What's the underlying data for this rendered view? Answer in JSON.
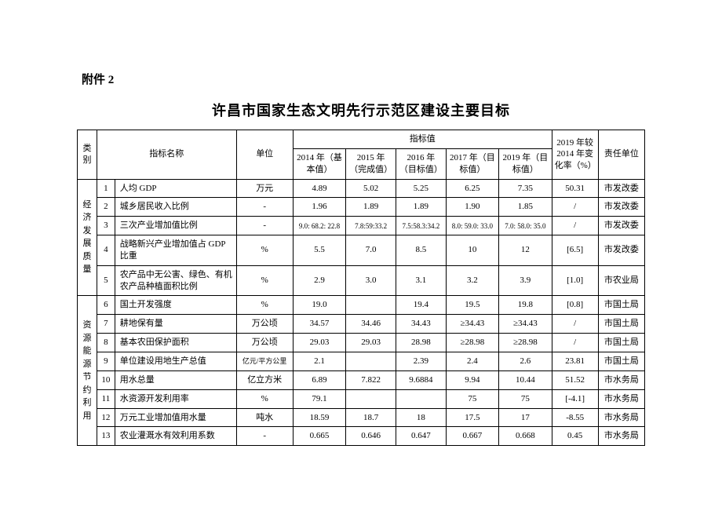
{
  "attachment_label": "附件 2",
  "title": "许昌市国家生态文明先行示范区建设主要目标",
  "headers": {
    "category": "类别",
    "indicator_name": "指标名称",
    "unit": "单位",
    "indicator_values": "指标值",
    "y2014": "2014 年（基本值）",
    "y2015": "2015 年（完成值）",
    "y2016": "2016 年（目标值）",
    "y2017": "2017 年（目标值）",
    "y2019": "2019 年（目标值）",
    "change": "2019 年较 2014 年变化率（%）",
    "responsible": "责任单位"
  },
  "categories": [
    {
      "name": "经济发展质量",
      "rows": [
        {
          "num": "1",
          "name": "人均 GDP",
          "unit": "万元",
          "v14": "4.89",
          "v15": "5.02",
          "v16": "5.25",
          "v17": "6.25",
          "v19": "7.35",
          "chg": "50.31",
          "resp": "市发改委"
        },
        {
          "num": "2",
          "name": "城乡居民收入比例",
          "unit": "-",
          "v14": "1.96",
          "v15": "1.89",
          "v16": "1.89",
          "v17": "1.90",
          "v19": "1.85",
          "chg": "/",
          "resp": "市发改委"
        },
        {
          "num": "3",
          "name": "三次产业增加值比例",
          "unit": "-",
          "v14": "9.0: 68.2: 22.8",
          "v15": "7.8:59:33.2",
          "v16": "7.5:58.3:34.2",
          "v17": "8.0: 59.0: 33.0",
          "v19": "7.0: 58.0: 35.0",
          "chg": "/",
          "resp": "市发改委",
          "tight": true
        },
        {
          "num": "4",
          "name": "战略新兴产业增加值占 GDP 比重",
          "unit": "%",
          "v14": "5.5",
          "v15": "7.0",
          "v16": "8.5",
          "v17": "10",
          "v19": "12",
          "chg": "[6.5]",
          "resp": "市发改委"
        },
        {
          "num": "5",
          "name": "农产品中无公害、绿色、有机农产品种植面积比例",
          "unit": "%",
          "v14": "2.9",
          "v15": "3.0",
          "v16": "3.1",
          "v17": "3.2",
          "v19": "3.9",
          "chg": "[1.0]",
          "resp": "市农业局"
        }
      ]
    },
    {
      "name": "资源能源节约利用",
      "rows": [
        {
          "num": "6",
          "name": "国土开发强度",
          "unit": "%",
          "v14": "19.0",
          "v15": "",
          "v16": "19.4",
          "v17": "19.5",
          "v19": "19.8",
          "chg": "[0.8]",
          "resp": "市国土局"
        },
        {
          "num": "7",
          "name": "耕地保有量",
          "unit": "万公顷",
          "v14": "34.57",
          "v15": "34.46",
          "v16": "34.43",
          "v17": "≥34.43",
          "v19": "≥34.43",
          "chg": "/",
          "resp": "市国土局"
        },
        {
          "num": "8",
          "name": "基本农田保护面积",
          "unit": "万公顷",
          "v14": "29.03",
          "v15": "29.03",
          "v16": "28.98",
          "v17": "≥28.98",
          "v19": "≥28.98",
          "chg": "/",
          "resp": "市国土局"
        },
        {
          "num": "9",
          "name": "单位建设用地生产总值",
          "unit": "亿元/平方公里",
          "v14": "2.1",
          "v15": "",
          "v16": "2.39",
          "v17": "2.4",
          "v19": "2.6",
          "chg": "23.81",
          "resp": "市国土局",
          "unit_tight": true
        },
        {
          "num": "10",
          "name": "用水总量",
          "unit": "亿立方米",
          "v14": "6.89",
          "v15": "7.822",
          "v16": "9.6884",
          "v17": "9.94",
          "v19": "10.44",
          "chg": "51.52",
          "resp": "市水务局"
        },
        {
          "num": "11",
          "name": "水资源开发利用率",
          "unit": "%",
          "v14": "79.1",
          "v15": "",
          "v16": "",
          "v17": "75",
          "v19": "75",
          "chg": "[-4.1]",
          "resp": "市水务局"
        },
        {
          "num": "12",
          "name": "万元工业增加值用水量",
          "unit": "吨水",
          "v14": "18.59",
          "v15": "18.7",
          "v16": "18",
          "v17": "17.5",
          "v19": "17",
          "chg": "-8.55",
          "resp": "市水务局"
        },
        {
          "num": "13",
          "name": "农业灌溉水有效利用系数",
          "unit": "-",
          "v14": "0.665",
          "v15": "0.646",
          "v16": "0.647",
          "v17": "0.667",
          "v19": "0.668",
          "chg": "0.45",
          "resp": "市水务局"
        }
      ]
    }
  ]
}
